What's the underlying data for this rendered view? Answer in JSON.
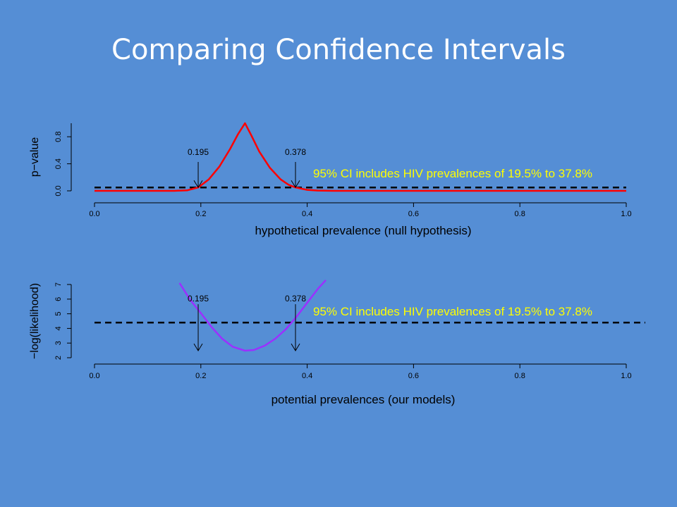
{
  "slide": {
    "title": "Comparing Confidence Intervals"
  },
  "chart_data": [
    {
      "type": "line",
      "xlabel": "hypothetical prevalence (null hypothesis)",
      "ylabel": "p−value",
      "xlim": [
        0.0,
        1.0
      ],
      "ylim": [
        0.0,
        1.0
      ],
      "x_ticks": [
        "0.0",
        "0.2",
        "0.4",
        "0.6",
        "0.8",
        "1.0"
      ],
      "y_ticks": [
        "0.0",
        "0.4",
        "0.8"
      ],
      "series": [
        {
          "color": "#ff0000",
          "x": [
            0.0,
            0.05,
            0.1,
            0.15,
            0.175,
            0.195,
            0.215,
            0.235,
            0.255,
            0.27,
            0.283,
            0.295,
            0.31,
            0.33,
            0.35,
            0.365,
            0.378,
            0.4,
            0.42,
            0.45,
            0.5,
            0.6,
            0.8,
            1.0
          ],
          "y": [
            0.0,
            0.0,
            0.0,
            0.0,
            0.008,
            0.05,
            0.17,
            0.36,
            0.62,
            0.84,
            1.0,
            0.82,
            0.58,
            0.34,
            0.17,
            0.09,
            0.05,
            0.015,
            0.004,
            0.0,
            0.0,
            0.0,
            0.0,
            0.0
          ]
        }
      ],
      "threshold": {
        "y": 0.05,
        "style": "dashed",
        "color": "#000000"
      },
      "ci_markers": [
        {
          "x": 0.195,
          "label": "0.195"
        },
        {
          "x": 0.378,
          "label": "0.378"
        }
      ],
      "annotation": "95% CI includes HIV prevalences of 19.5% to 37.8%"
    },
    {
      "type": "line",
      "xlabel": "potential prevalences (our models)",
      "ylabel": "−log(likelihood)",
      "xlim": [
        0.0,
        1.0
      ],
      "ylim": [
        2,
        7
      ],
      "x_ticks": [
        "0.0",
        "0.2",
        "0.4",
        "0.6",
        "0.8",
        "1.0"
      ],
      "y_ticks": [
        "2",
        "3",
        "4",
        "5",
        "6",
        "7"
      ],
      "series": [
        {
          "color": "#9b30ff",
          "x": [
            0.16,
            0.18,
            0.2,
            0.22,
            0.24,
            0.26,
            0.283,
            0.3,
            0.32,
            0.34,
            0.36,
            0.38,
            0.4,
            0.42,
            0.435
          ],
          "y": [
            7.1,
            5.95,
            5.05,
            4.1,
            3.3,
            2.75,
            2.48,
            2.53,
            2.82,
            3.3,
            3.95,
            4.8,
            5.75,
            6.7,
            7.3
          ]
        }
      ],
      "threshold": {
        "y": 4.4,
        "style": "dashed",
        "color": "#000000"
      },
      "ci_markers": [
        {
          "x": 0.195,
          "label": "0.195"
        },
        {
          "x": 0.378,
          "label": "0.378"
        }
      ],
      "annotation": "95% CI includes HIV prevalences of 19.5% to 37.8%"
    }
  ]
}
